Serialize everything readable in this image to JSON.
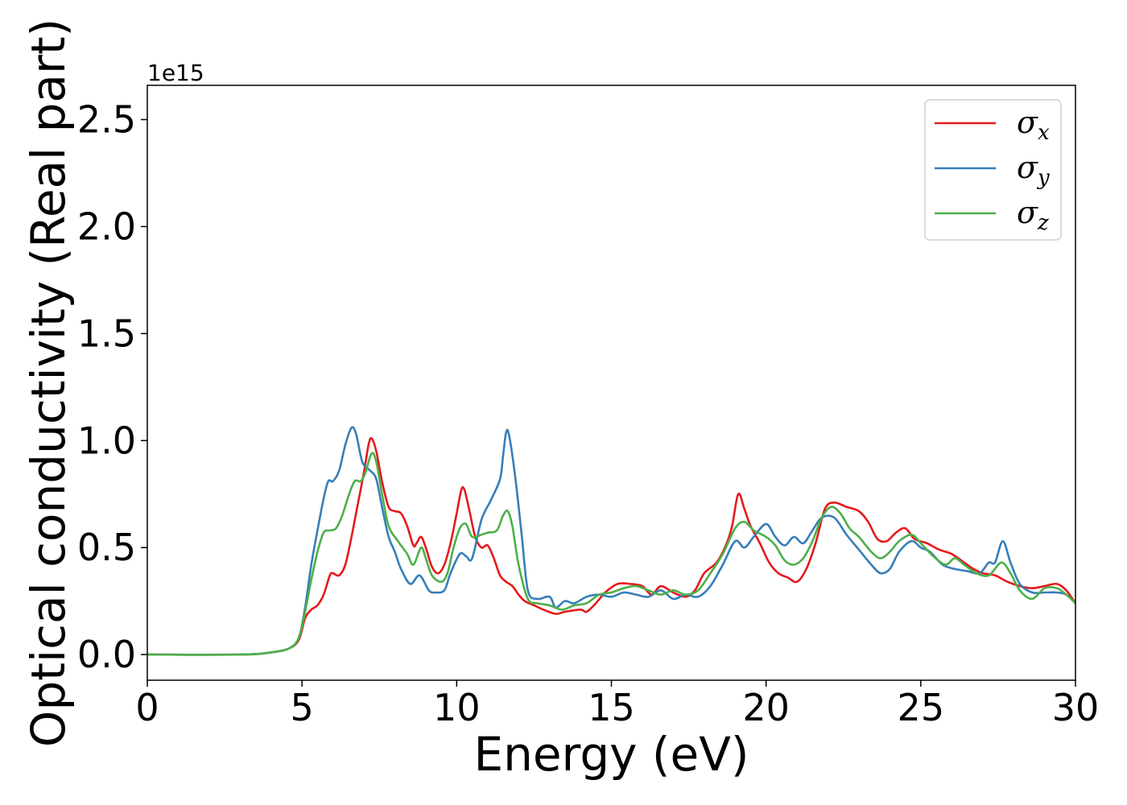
{
  "chart_data": {
    "type": "line",
    "title": "",
    "xlabel": "Energy (eV)",
    "ylabel": "Optical conductivity (Real part)",
    "y_offset_text": "1e15",
    "xlim": [
      0,
      30
    ],
    "ylim": [
      -0.12,
      2.66
    ],
    "xticks": [
      0,
      5,
      10,
      15,
      20,
      25,
      30
    ],
    "yticks": [
      0.0,
      0.5,
      1.0,
      1.5,
      2.0,
      2.5
    ],
    "xtick_labels": [
      "0",
      "5",
      "10",
      "15",
      "20",
      "25",
      "30"
    ],
    "ytick_labels": [
      "0.0",
      "0.5",
      "1.0",
      "1.5",
      "2.0",
      "2.5"
    ],
    "grid": false,
    "legend_position": "top-right",
    "series": [
      {
        "name": "σ_x",
        "symbol": "σ",
        "sub": "x",
        "color": "#e41a1c",
        "points": [
          [
            0,
            0
          ],
          [
            3,
            0.0
          ],
          [
            4,
            0.01
          ],
          [
            4.6,
            0.03
          ],
          [
            4.9,
            0.07
          ],
          [
            5.1,
            0.17
          ],
          [
            5.3,
            0.21
          ],
          [
            5.5,
            0.23
          ],
          [
            5.7,
            0.28
          ],
          [
            5.9,
            0.37
          ],
          [
            6.0,
            0.38
          ],
          [
            6.2,
            0.37
          ],
          [
            6.4,
            0.42
          ],
          [
            6.6,
            0.55
          ],
          [
            6.8,
            0.7
          ],
          [
            7.0,
            0.85
          ],
          [
            7.15,
            0.98
          ],
          [
            7.25,
            1.01
          ],
          [
            7.4,
            0.95
          ],
          [
            7.6,
            0.8
          ],
          [
            7.8,
            0.69
          ],
          [
            8.0,
            0.67
          ],
          [
            8.2,
            0.66
          ],
          [
            8.4,
            0.6
          ],
          [
            8.6,
            0.51
          ],
          [
            8.7,
            0.52
          ],
          [
            8.85,
            0.55
          ],
          [
            9.0,
            0.5
          ],
          [
            9.2,
            0.41
          ],
          [
            9.4,
            0.38
          ],
          [
            9.6,
            0.42
          ],
          [
            9.8,
            0.52
          ],
          [
            10.0,
            0.66
          ],
          [
            10.15,
            0.77
          ],
          [
            10.25,
            0.77
          ],
          [
            10.4,
            0.68
          ],
          [
            10.6,
            0.55
          ],
          [
            10.8,
            0.5
          ],
          [
            11.0,
            0.51
          ],
          [
            11.2,
            0.45
          ],
          [
            11.4,
            0.37
          ],
          [
            11.6,
            0.34
          ],
          [
            11.8,
            0.32
          ],
          [
            12.0,
            0.28
          ],
          [
            12.2,
            0.25
          ],
          [
            12.5,
            0.23
          ],
          [
            12.8,
            0.21
          ],
          [
            13.2,
            0.19
          ],
          [
            13.5,
            0.2
          ],
          [
            14.0,
            0.21
          ],
          [
            14.2,
            0.2
          ],
          [
            14.5,
            0.24
          ],
          [
            14.8,
            0.29
          ],
          [
            15.2,
            0.33
          ],
          [
            15.6,
            0.33
          ],
          [
            16.0,
            0.32
          ],
          [
            16.3,
            0.28
          ],
          [
            16.6,
            0.32
          ],
          [
            17.0,
            0.29
          ],
          [
            17.4,
            0.27
          ],
          [
            17.7,
            0.3
          ],
          [
            18.0,
            0.38
          ],
          [
            18.4,
            0.43
          ],
          [
            18.7,
            0.51
          ],
          [
            18.9,
            0.6
          ],
          [
            19.1,
            0.75
          ],
          [
            19.3,
            0.68
          ],
          [
            19.5,
            0.6
          ],
          [
            19.8,
            0.52
          ],
          [
            20.1,
            0.43
          ],
          [
            20.4,
            0.38
          ],
          [
            20.7,
            0.36
          ],
          [
            21.0,
            0.34
          ],
          [
            21.3,
            0.4
          ],
          [
            21.6,
            0.52
          ],
          [
            21.9,
            0.68
          ],
          [
            22.2,
            0.71
          ],
          [
            22.6,
            0.69
          ],
          [
            23.0,
            0.67
          ],
          [
            23.3,
            0.62
          ],
          [
            23.6,
            0.54
          ],
          [
            23.9,
            0.53
          ],
          [
            24.2,
            0.57
          ],
          [
            24.5,
            0.59
          ],
          [
            24.8,
            0.54
          ],
          [
            25.2,
            0.52
          ],
          [
            25.6,
            0.49
          ],
          [
            26.0,
            0.47
          ],
          [
            26.4,
            0.43
          ],
          [
            26.7,
            0.4
          ],
          [
            27.0,
            0.38
          ],
          [
            27.4,
            0.37
          ],
          [
            27.8,
            0.34
          ],
          [
            28.2,
            0.32
          ],
          [
            28.6,
            0.31
          ],
          [
            29.0,
            0.32
          ],
          [
            29.4,
            0.33
          ],
          [
            29.7,
            0.3
          ],
          [
            30.0,
            0.24
          ]
        ]
      },
      {
        "name": "σ_y",
        "symbol": "σ",
        "sub": "y",
        "color": "#377eb8",
        "points": [
          [
            0,
            0
          ],
          [
            3,
            0.0
          ],
          [
            4,
            0.01
          ],
          [
            4.6,
            0.03
          ],
          [
            4.9,
            0.08
          ],
          [
            5.1,
            0.22
          ],
          [
            5.3,
            0.42
          ],
          [
            5.5,
            0.58
          ],
          [
            5.7,
            0.73
          ],
          [
            5.85,
            0.81
          ],
          [
            6.0,
            0.81
          ],
          [
            6.2,
            0.86
          ],
          [
            6.4,
            0.98
          ],
          [
            6.6,
            1.06
          ],
          [
            6.75,
            1.03
          ],
          [
            6.95,
            0.9
          ],
          [
            7.2,
            0.86
          ],
          [
            7.4,
            0.82
          ],
          [
            7.6,
            0.68
          ],
          [
            7.8,
            0.55
          ],
          [
            8.0,
            0.48
          ],
          [
            8.2,
            0.4
          ],
          [
            8.5,
            0.33
          ],
          [
            8.8,
            0.37
          ],
          [
            9.1,
            0.3
          ],
          [
            9.3,
            0.29
          ],
          [
            9.6,
            0.3
          ],
          [
            9.8,
            0.38
          ],
          [
            10.1,
            0.47
          ],
          [
            10.3,
            0.46
          ],
          [
            10.5,
            0.45
          ],
          [
            10.8,
            0.63
          ],
          [
            11.1,
            0.72
          ],
          [
            11.4,
            0.82
          ],
          [
            11.5,
            0.93
          ],
          [
            11.6,
            1.04
          ],
          [
            11.7,
            1.02
          ],
          [
            11.9,
            0.82
          ],
          [
            12.1,
            0.56
          ],
          [
            12.3,
            0.3
          ],
          [
            12.6,
            0.26
          ],
          [
            13.0,
            0.27
          ],
          [
            13.2,
            0.22
          ],
          [
            13.5,
            0.25
          ],
          [
            13.8,
            0.24
          ],
          [
            14.2,
            0.27
          ],
          [
            14.6,
            0.28
          ],
          [
            15.0,
            0.27
          ],
          [
            15.4,
            0.29
          ],
          [
            15.8,
            0.28
          ],
          [
            16.2,
            0.27
          ],
          [
            16.6,
            0.3
          ],
          [
            17.0,
            0.26
          ],
          [
            17.4,
            0.28
          ],
          [
            17.8,
            0.27
          ],
          [
            18.2,
            0.32
          ],
          [
            18.6,
            0.42
          ],
          [
            19.0,
            0.53
          ],
          [
            19.3,
            0.5
          ],
          [
            19.6,
            0.55
          ],
          [
            20.0,
            0.61
          ],
          [
            20.3,
            0.55
          ],
          [
            20.6,
            0.51
          ],
          [
            20.9,
            0.55
          ],
          [
            21.2,
            0.52
          ],
          [
            21.5,
            0.58
          ],
          [
            21.8,
            0.64
          ],
          [
            22.2,
            0.64
          ],
          [
            22.6,
            0.56
          ],
          [
            23.0,
            0.49
          ],
          [
            23.4,
            0.42
          ],
          [
            23.7,
            0.38
          ],
          [
            24.0,
            0.4
          ],
          [
            24.3,
            0.48
          ],
          [
            24.7,
            0.53
          ],
          [
            25.0,
            0.5
          ],
          [
            25.3,
            0.48
          ],
          [
            25.7,
            0.42
          ],
          [
            26.1,
            0.4
          ],
          [
            26.5,
            0.39
          ],
          [
            26.9,
            0.38
          ],
          [
            27.2,
            0.43
          ],
          [
            27.4,
            0.43
          ],
          [
            27.65,
            0.53
          ],
          [
            27.9,
            0.43
          ],
          [
            28.2,
            0.33
          ],
          [
            28.6,
            0.29
          ],
          [
            29.0,
            0.29
          ],
          [
            29.4,
            0.29
          ],
          [
            29.7,
            0.28
          ],
          [
            30.0,
            0.24
          ]
        ]
      },
      {
        "name": "σ_z",
        "symbol": "σ",
        "sub": "z",
        "color": "#4daf4a",
        "points": [
          [
            0,
            0
          ],
          [
            3,
            0.0
          ],
          [
            4,
            0.01
          ],
          [
            4.6,
            0.03
          ],
          [
            4.9,
            0.08
          ],
          [
            5.1,
            0.2
          ],
          [
            5.3,
            0.35
          ],
          [
            5.5,
            0.48
          ],
          [
            5.7,
            0.57
          ],
          [
            5.9,
            0.58
          ],
          [
            6.1,
            0.59
          ],
          [
            6.3,
            0.65
          ],
          [
            6.5,
            0.74
          ],
          [
            6.7,
            0.81
          ],
          [
            6.9,
            0.81
          ],
          [
            7.05,
            0.85
          ],
          [
            7.25,
            0.94
          ],
          [
            7.4,
            0.9
          ],
          [
            7.6,
            0.74
          ],
          [
            7.8,
            0.6
          ],
          [
            8.1,
            0.53
          ],
          [
            8.4,
            0.47
          ],
          [
            8.6,
            0.42
          ],
          [
            8.85,
            0.5
          ],
          [
            9.0,
            0.45
          ],
          [
            9.2,
            0.37
          ],
          [
            9.5,
            0.34
          ],
          [
            9.7,
            0.38
          ],
          [
            9.9,
            0.5
          ],
          [
            10.1,
            0.59
          ],
          [
            10.3,
            0.61
          ],
          [
            10.5,
            0.55
          ],
          [
            10.8,
            0.56
          ],
          [
            11.0,
            0.57
          ],
          [
            11.3,
            0.58
          ],
          [
            11.5,
            0.65
          ],
          [
            11.65,
            0.67
          ],
          [
            11.8,
            0.6
          ],
          [
            12.0,
            0.42
          ],
          [
            12.3,
            0.26
          ],
          [
            12.6,
            0.24
          ],
          [
            13.0,
            0.23
          ],
          [
            13.4,
            0.21
          ],
          [
            13.8,
            0.23
          ],
          [
            14.2,
            0.24
          ],
          [
            14.6,
            0.28
          ],
          [
            15.0,
            0.29
          ],
          [
            15.4,
            0.31
          ],
          [
            15.8,
            0.32
          ],
          [
            16.2,
            0.3
          ],
          [
            16.6,
            0.28
          ],
          [
            17.0,
            0.3
          ],
          [
            17.4,
            0.28
          ],
          [
            17.8,
            0.3
          ],
          [
            18.2,
            0.38
          ],
          [
            18.6,
            0.47
          ],
          [
            19.0,
            0.59
          ],
          [
            19.3,
            0.62
          ],
          [
            19.6,
            0.58
          ],
          [
            20.0,
            0.55
          ],
          [
            20.3,
            0.51
          ],
          [
            20.6,
            0.44
          ],
          [
            20.9,
            0.42
          ],
          [
            21.2,
            0.45
          ],
          [
            21.5,
            0.53
          ],
          [
            21.8,
            0.64
          ],
          [
            22.1,
            0.69
          ],
          [
            22.4,
            0.66
          ],
          [
            22.7,
            0.59
          ],
          [
            23.0,
            0.55
          ],
          [
            23.4,
            0.48
          ],
          [
            23.7,
            0.45
          ],
          [
            24.0,
            0.48
          ],
          [
            24.3,
            0.53
          ],
          [
            24.7,
            0.56
          ],
          [
            25.0,
            0.52
          ],
          [
            25.4,
            0.46
          ],
          [
            25.8,
            0.42
          ],
          [
            26.1,
            0.45
          ],
          [
            26.4,
            0.42
          ],
          [
            26.8,
            0.38
          ],
          [
            27.2,
            0.37
          ],
          [
            27.6,
            0.43
          ],
          [
            27.9,
            0.38
          ],
          [
            28.2,
            0.3
          ],
          [
            28.6,
            0.26
          ],
          [
            29.0,
            0.31
          ],
          [
            29.4,
            0.31
          ],
          [
            29.7,
            0.28
          ],
          [
            30.0,
            0.24
          ]
        ]
      }
    ]
  }
}
